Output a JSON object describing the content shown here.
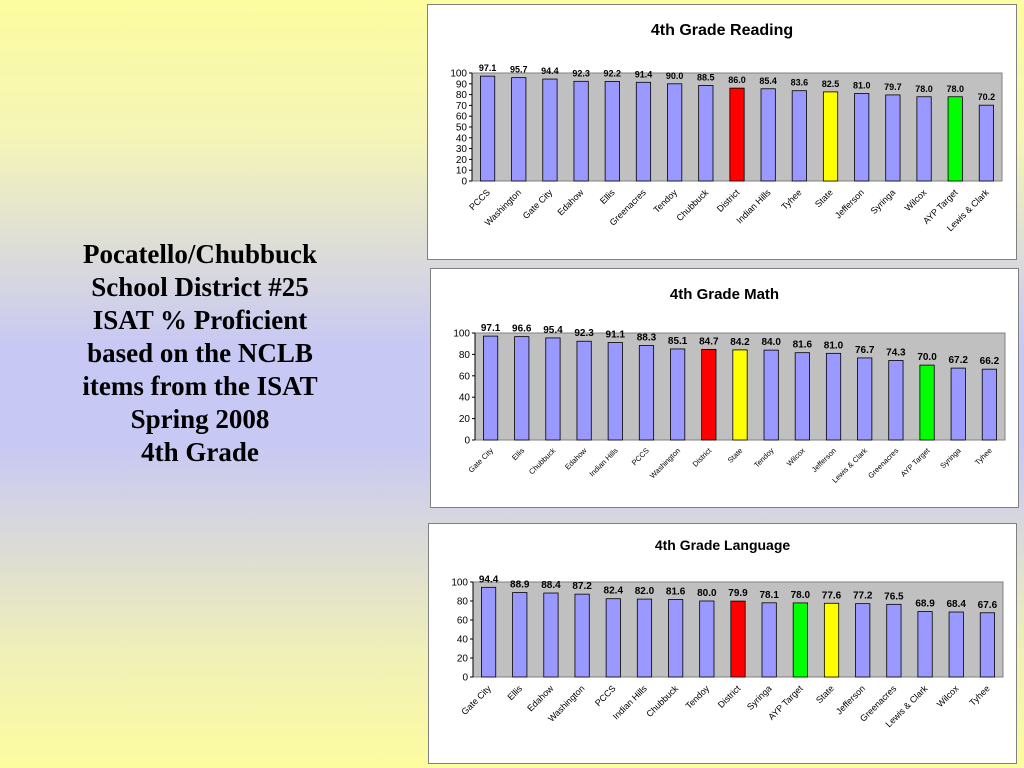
{
  "slide": {
    "title_lines": [
      "Pocatello/Chubbuck",
      "School District #25",
      "ISAT % Proficient",
      "based on the NCLB",
      "items from the ISAT",
      "Spring 2008",
      "4th Grade"
    ]
  },
  "colors": {
    "bar_default": "#9999ff",
    "district": "#ff0000",
    "state": "#ffff00",
    "ayp_target": "#00ff00",
    "plot_background": "#c0c0c0"
  },
  "chart_data": [
    {
      "type": "bar",
      "title": "4th Grade Reading",
      "categories": [
        "PCCS",
        "Washington",
        "Gate City",
        "Edahow",
        "Ellis",
        "Greenacres",
        "Tendoy",
        "Chubbuck",
        "District",
        "Indian Hills",
        "Tyhee",
        "State",
        "Jefferson",
        "Syringa",
        "Wilcox",
        "AYP Target",
        "Lewis & Clark"
      ],
      "values": [
        97.1,
        95.7,
        94.4,
        92.3,
        92.2,
        91.4,
        90.0,
        88.5,
        86.0,
        85.4,
        83.6,
        82.5,
        81.0,
        79.7,
        78.0,
        78.0,
        70.2
      ],
      "value_labels": [
        "97.1",
        "95.7",
        "94.4",
        "92.3",
        "92.2",
        "91.4",
        "90.0",
        "88.5",
        "86.0",
        "85.4",
        "83.6",
        "82.5",
        "81.0",
        "79.7",
        "78.0",
        "78.0",
        "70.2"
      ],
      "y_ticks": [
        "0",
        "10",
        "20",
        "30",
        "40",
        "50",
        "60",
        "70",
        "80",
        "90",
        "100"
      ],
      "ylim": [
        0,
        100
      ],
      "grid": false
    },
    {
      "type": "bar",
      "title": "4th Grade Math",
      "categories": [
        "Gate City",
        "Ellis",
        "Chubbuck",
        "Edahow",
        "Indian Hills",
        "PCCS",
        "Washington",
        "District",
        "State",
        "Tendoy",
        "Wilcox",
        "Jefferson",
        "Lewis & Clark",
        "Greenacres",
        "AYP Target",
        "Syringa",
        "Tyhee"
      ],
      "values": [
        97.1,
        96.6,
        95.4,
        92.3,
        91.1,
        88.3,
        85.1,
        84.7,
        84.2,
        84.0,
        81.6,
        81.0,
        76.7,
        74.3,
        70.0,
        67.2,
        66.2
      ],
      "value_labels": [
        "97.1",
        "96.6",
        "95.4",
        "92.3",
        "91.1",
        "88.3",
        "85.1",
        "84.7",
        "84.2",
        "84.0",
        "81.6",
        "81.0",
        "76.7",
        "74.3",
        "70.0",
        "67.2",
        "66.2"
      ],
      "y_ticks": [
        "0",
        "20",
        "40",
        "60",
        "80",
        "100"
      ],
      "ylim": [
        0,
        100
      ],
      "grid": false
    },
    {
      "type": "bar",
      "title": "4th Grade Language",
      "categories": [
        "Gate City",
        "Ellis",
        "Edahow",
        "Washington",
        "PCCS",
        "Indian Hills",
        "Chubbuck",
        "Tendoy",
        "District",
        "Syringa",
        "AYP Target",
        "State",
        "Jefferson",
        "Greenacres",
        "Lewis & Clark",
        "Wilcox",
        "Tyhee"
      ],
      "values": [
        94.4,
        88.9,
        88.4,
        87.2,
        82.4,
        82.0,
        81.6,
        80.0,
        79.9,
        78.1,
        78.0,
        77.6,
        77.2,
        76.5,
        68.9,
        68.4,
        67.6
      ],
      "value_labels": [
        "94.4",
        "88.9",
        "88.4",
        "87.2",
        "82.4",
        "82.0",
        "81.6",
        "80.0",
        "79.9",
        "78.1",
        "78.0",
        "77.6",
        "77.2",
        "76.5",
        "68.9",
        "68.4",
        "67.6"
      ],
      "y_ticks": [
        "0",
        "20",
        "40",
        "60",
        "80",
        "100"
      ],
      "ylim": [
        0,
        100
      ],
      "grid": false
    }
  ]
}
